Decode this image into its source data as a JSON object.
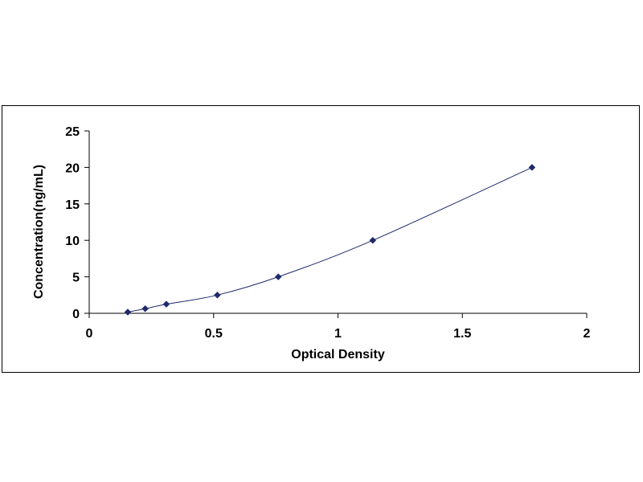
{
  "chart_data": {
    "type": "scatter",
    "title": "",
    "xlabel": "Optical Density",
    "ylabel": "Concentration(ng/mL)",
    "xlim": [
      0,
      2
    ],
    "ylim": [
      0,
      25
    ],
    "x_ticks": [
      0,
      0.5,
      1,
      1.5,
      2
    ],
    "x_tick_labels": [
      "0",
      "0.5",
      "1",
      "1.5",
      "2"
    ],
    "y_ticks": [
      0,
      5,
      10,
      15,
      20,
      25
    ],
    "y_tick_labels": [
      "0",
      "5",
      "10",
      "15",
      "20",
      "25"
    ],
    "grid": false,
    "legend": "none",
    "series": [
      {
        "x": [
          0.155,
          0.225,
          0.31,
          0.515,
          0.76,
          1.14,
          1.78
        ],
        "y": [
          0.16,
          0.63,
          1.25,
          2.5,
          5,
          10,
          20
        ],
        "marker": "diamond",
        "color": "#1f2a6b",
        "trendline": "polynomial"
      }
    ]
  }
}
